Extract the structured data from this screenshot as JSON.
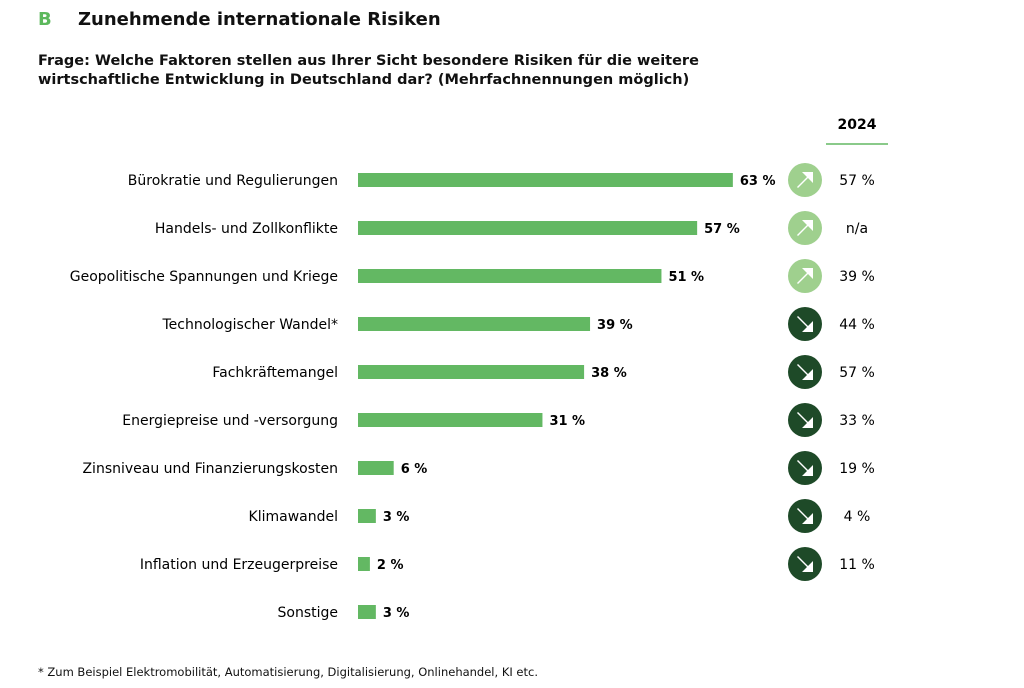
{
  "header": {
    "letter": "B",
    "title": "Zunehmende internationale Risiken",
    "question": "Frage: Welche Faktoren stellen aus Ihrer Sicht besondere Risiken für die weitere wirtschaftliche Entwicklung in Deutschland dar? (Mehrfachnennungen möglich)"
  },
  "footnote": "* Zum Beispiel Elektromobilität, Automatisierung, Digitalisierung, Onlinehandel, KI etc.",
  "colors": {
    "bar": "#63b863",
    "up": "#9fd08e",
    "down": "#1e4a28"
  },
  "chart_data": {
    "type": "bar",
    "orientation": "horizontal",
    "unit": "%",
    "comparison_header": "2024",
    "categories": [
      "Bürokratie und Regulierungen",
      "Handels- und Zollkonflikte",
      "Geopolitische Spannungen und Kriege",
      "Technologischer Wandel*",
      "Fachkräftemangel",
      "Energiepreise und -versorgung",
      "Zinsniveau und Finanzierungskosten",
      "Klimawandel",
      "Inflation und Erzeugerpreise",
      "Sonstige"
    ],
    "values": [
      63,
      57,
      51,
      39,
      38,
      31,
      6,
      3,
      2,
      3
    ],
    "trend": [
      "up",
      "up",
      "up",
      "down",
      "down",
      "down",
      "down",
      "down",
      "down",
      null
    ],
    "values_2024": [
      "57 %",
      "n/a",
      "39 %",
      "44 %",
      "57 %",
      "33 %",
      "19 %",
      "4 %",
      "11 %",
      null
    ]
  }
}
